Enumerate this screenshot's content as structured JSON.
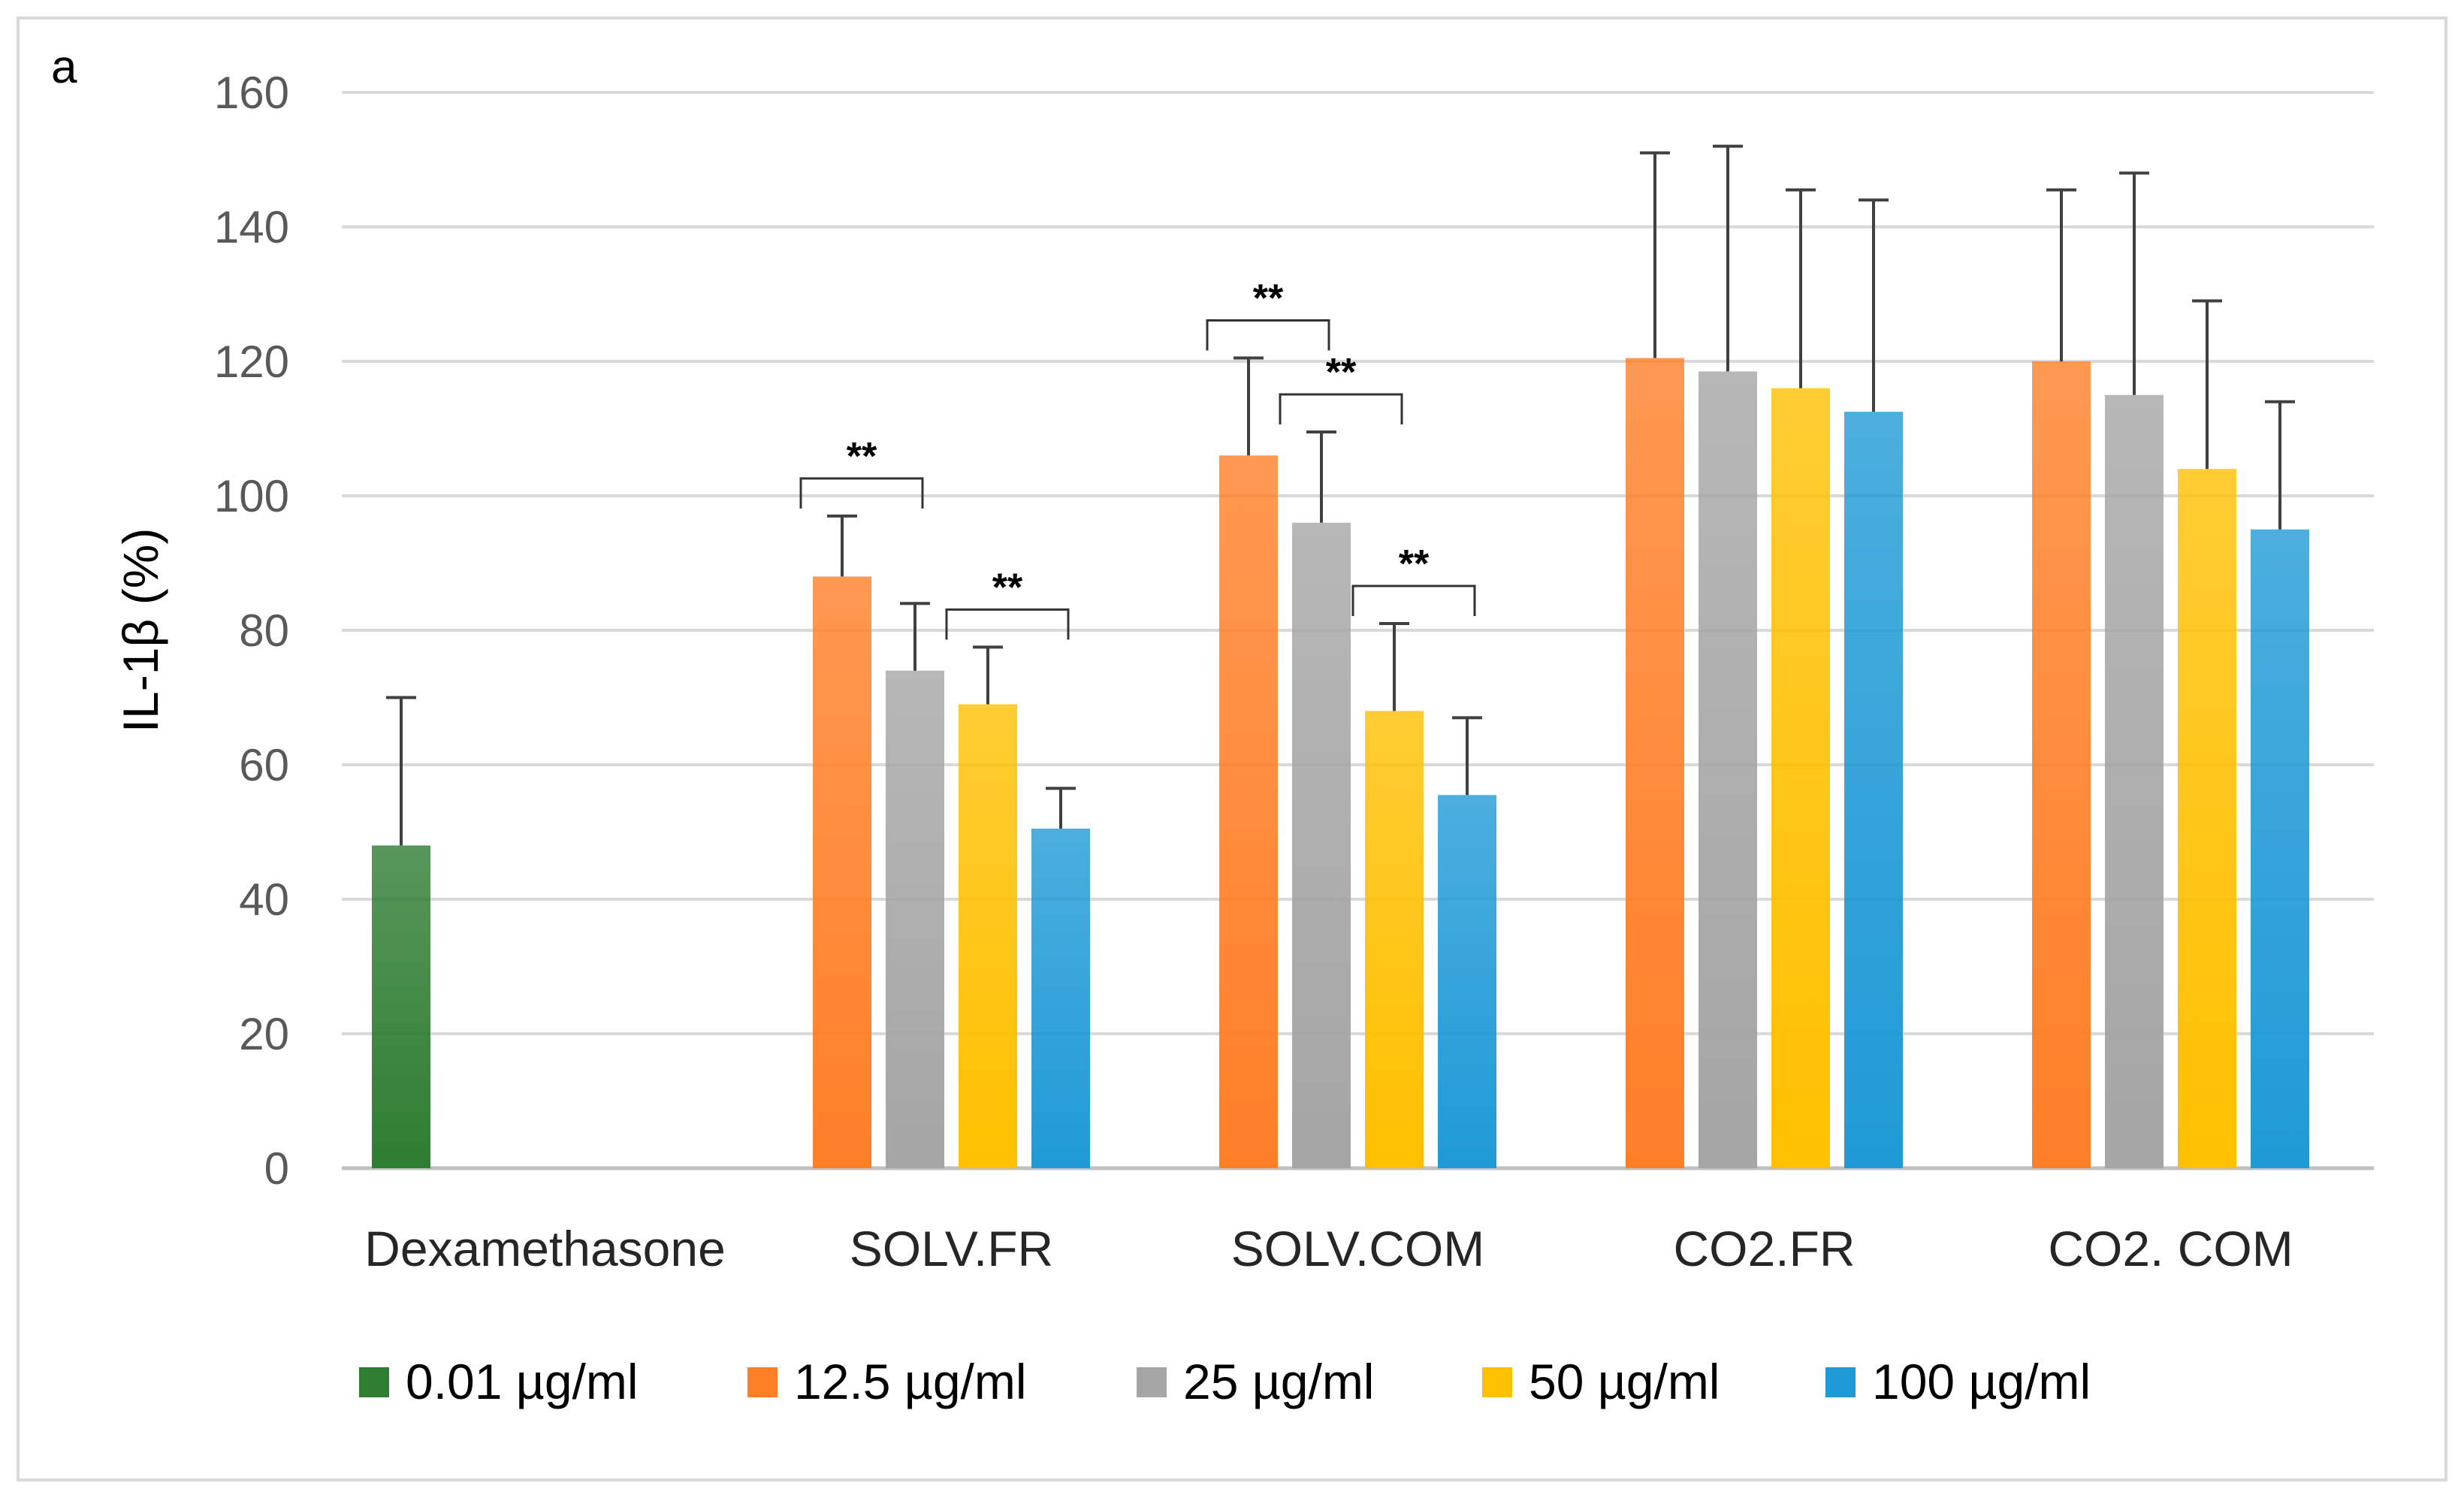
{
  "chart_data": {
    "type": "bar",
    "panel_label": "a",
    "ylabel": "IL-1β (%)",
    "xlabel": "",
    "ylim": [
      0,
      160
    ],
    "yticks": [
      0,
      20,
      40,
      60,
      80,
      100,
      120,
      140,
      160
    ],
    "grid": true,
    "legend_position": "bottom",
    "categories": [
      "Dexamethasone",
      "SOLV.FR",
      "SOLV.COM",
      "CO2.FR",
      "CO2. COM"
    ],
    "series": [
      {
        "name": "0.01 µg/ml",
        "color": "#2e7d32",
        "values": [
          48,
          null,
          null,
          null,
          null
        ],
        "errors": [
          22,
          null,
          null,
          null,
          null
        ]
      },
      {
        "name": "12.5 µg/ml",
        "color": "#ff7f27",
        "values": [
          null,
          88,
          106,
          120.5,
          120
        ],
        "errors": [
          null,
          9,
          14.5,
          30.5,
          25.5
        ]
      },
      {
        "name": "25 µg/ml",
        "color": "#a5a5a5",
        "values": [
          null,
          74,
          96,
          118.5,
          115
        ],
        "errors": [
          null,
          10,
          13.5,
          33.5,
          33
        ]
      },
      {
        "name": "50 µg/ml",
        "color": "#ffc000",
        "values": [
          null,
          69,
          68,
          116,
          104
        ],
        "errors": [
          null,
          8.5,
          13,
          29.5,
          25
        ]
      },
      {
        "name": "100 µg/ml",
        "color": "#1f9ad6",
        "values": [
          null,
          50.5,
          55.5,
          112.5,
          95
        ],
        "errors": [
          null,
          6,
          11.5,
          31.5,
          19
        ]
      }
    ],
    "significance": [
      {
        "category": 1,
        "from_series": 1,
        "to_series": 2,
        "label": "**"
      },
      {
        "category": 1,
        "from_series": 3,
        "to_series": 4,
        "label": "**"
      },
      {
        "category": 2,
        "from_series": 1,
        "to_series": 2,
        "label": "**"
      },
      {
        "category": 2,
        "from_series": 2,
        "to_series": 3,
        "label": "**"
      },
      {
        "category": 2,
        "from_series": 3,
        "to_series": 4,
        "label": "**"
      }
    ]
  }
}
